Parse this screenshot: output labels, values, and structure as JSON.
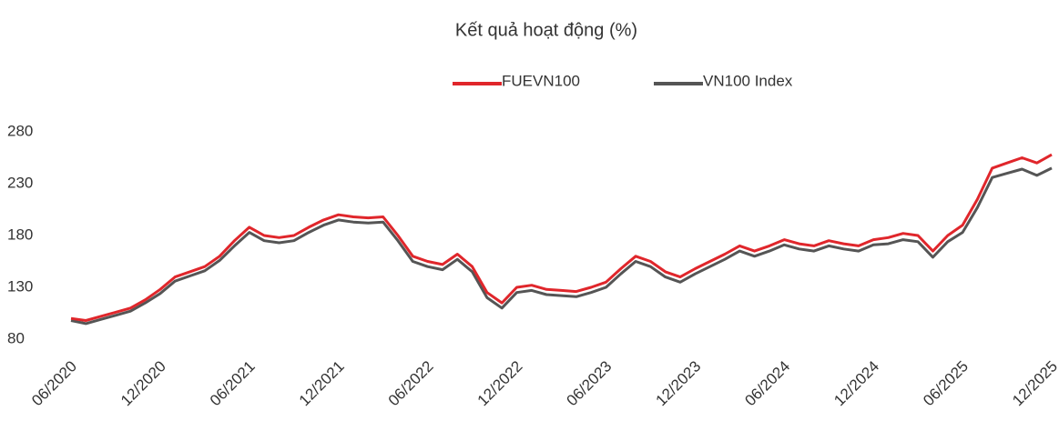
{
  "chart_data": {
    "type": "line",
    "title": "Kết quả hoạt động (%)",
    "categories": [
      "06/2020",
      null,
      null,
      null,
      null,
      null,
      "12/2020",
      null,
      null,
      null,
      null,
      null,
      "06/2021",
      null,
      null,
      null,
      null,
      null,
      "12/2021",
      null,
      null,
      null,
      null,
      null,
      "06/2022",
      null,
      null,
      null,
      null,
      null,
      "12/2022",
      null,
      null,
      null,
      null,
      null,
      "06/2023",
      null,
      null,
      null,
      null,
      null,
      "12/2023",
      null,
      null,
      null,
      null,
      null,
      "06/2024",
      null,
      null,
      null,
      null,
      null,
      "12/2024",
      null,
      null,
      null,
      null,
      null,
      "06/2025",
      null,
      null,
      null,
      null,
      null,
      "12/2025"
    ],
    "series": [
      {
        "name": "FUEVN100",
        "color": "#e0262b",
        "values": [
          100,
          98,
          102,
          106,
          110,
          118,
          128,
          140,
          145,
          150,
          160,
          175,
          188,
          180,
          178,
          180,
          188,
          195,
          200,
          198,
          197,
          198,
          180,
          160,
          155,
          152,
          162,
          150,
          125,
          115,
          130,
          132,
          128,
          127,
          126,
          130,
          135,
          148,
          160,
          155,
          145,
          140,
          148,
          155,
          162,
          170,
          165,
          170,
          176,
          172,
          170,
          175,
          172,
          170,
          176,
          178,
          182,
          180,
          165,
          180,
          190,
          215,
          245,
          250,
          255,
          250,
          258
        ]
      },
      {
        "name": "VN100 Index",
        "color": "#555555",
        "values": [
          98,
          95,
          99,
          103,
          107,
          115,
          124,
          136,
          141,
          146,
          156,
          170,
          183,
          175,
          173,
          175,
          183,
          190,
          195,
          193,
          192,
          193,
          175,
          155,
          150,
          147,
          157,
          145,
          120,
          110,
          125,
          127,
          123,
          122,
          121,
          125,
          130,
          143,
          155,
          150,
          140,
          135,
          143,
          150,
          157,
          165,
          160,
          165,
          171,
          167,
          165,
          170,
          167,
          165,
          171,
          172,
          176,
          174,
          159,
          174,
          183,
          207,
          236,
          240,
          244,
          238,
          245
        ]
      }
    ],
    "ylim": [
      75,
      285
    ],
    "yticks": [
      80,
      130,
      180,
      230,
      280
    ],
    "grid": false
  }
}
